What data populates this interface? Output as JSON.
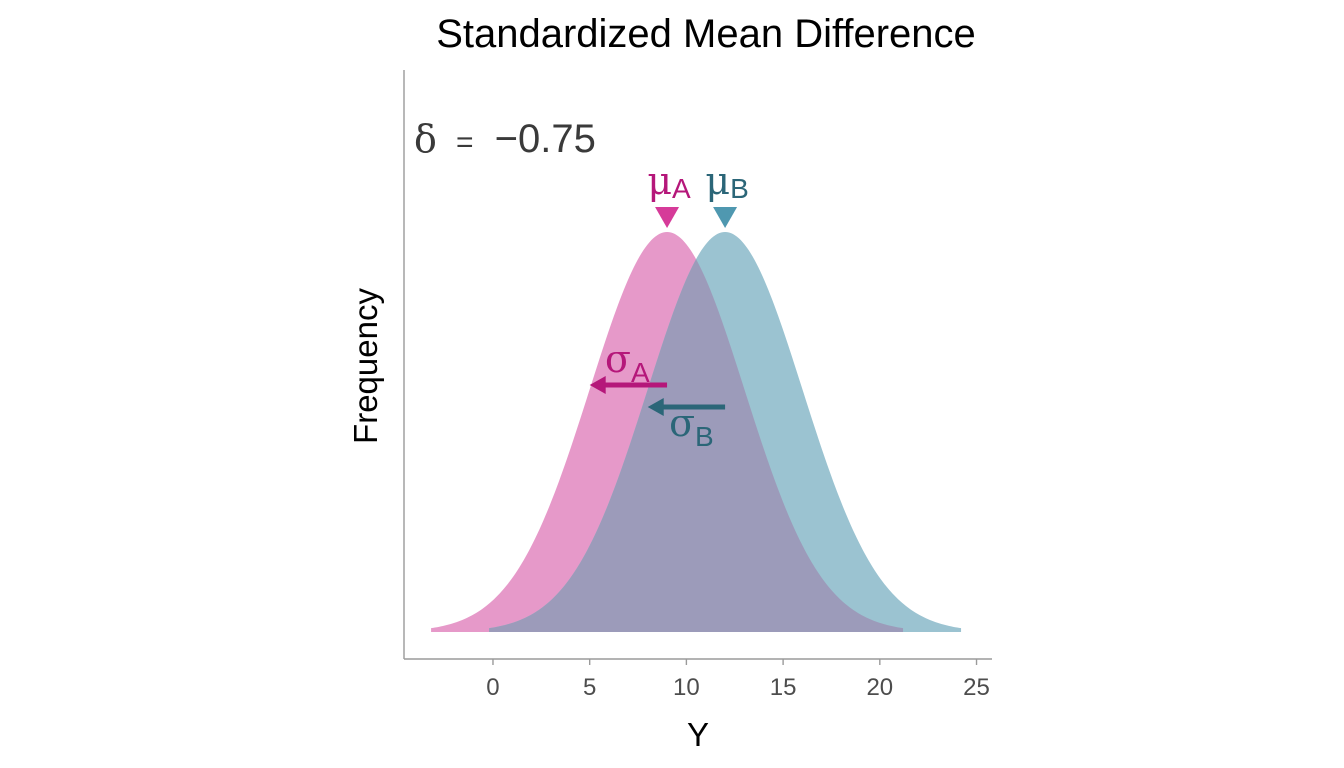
{
  "chart_data": {
    "type": "area",
    "title": "Standardized Mean Difference",
    "xlabel": "Y",
    "ylabel": "Frequency",
    "xlim": [
      -4.6,
      25.8
    ],
    "xticks": [
      0,
      5,
      10,
      15,
      20,
      25
    ],
    "annotation": {
      "symbol": "δ",
      "equals": "=",
      "value": "−0.75"
    },
    "series": [
      {
        "id": "A",
        "mean": 9,
        "sd": 4,
        "x_range": [
          -3.2,
          21.2
        ],
        "fill": "#e699c9",
        "text_color": "#b5177a",
        "marker_color": "#d63b99",
        "mu_symbol": "μ",
        "sigma_symbol": "σ",
        "subscript": "A"
      },
      {
        "id": "B",
        "mean": 12,
        "sd": 4,
        "x_range": [
          -0.2,
          24.2
        ],
        "fill": "#9bc3d1",
        "text_color": "#2b6678",
        "marker_color": "#4f98b0",
        "mu_symbol": "μ",
        "sigma_symbol": "σ",
        "subscript": "B"
      }
    ],
    "overlap_fill": "#9c9bba",
    "axis_color": "#9a9a9a",
    "grid": false,
    "legend": "none"
  }
}
